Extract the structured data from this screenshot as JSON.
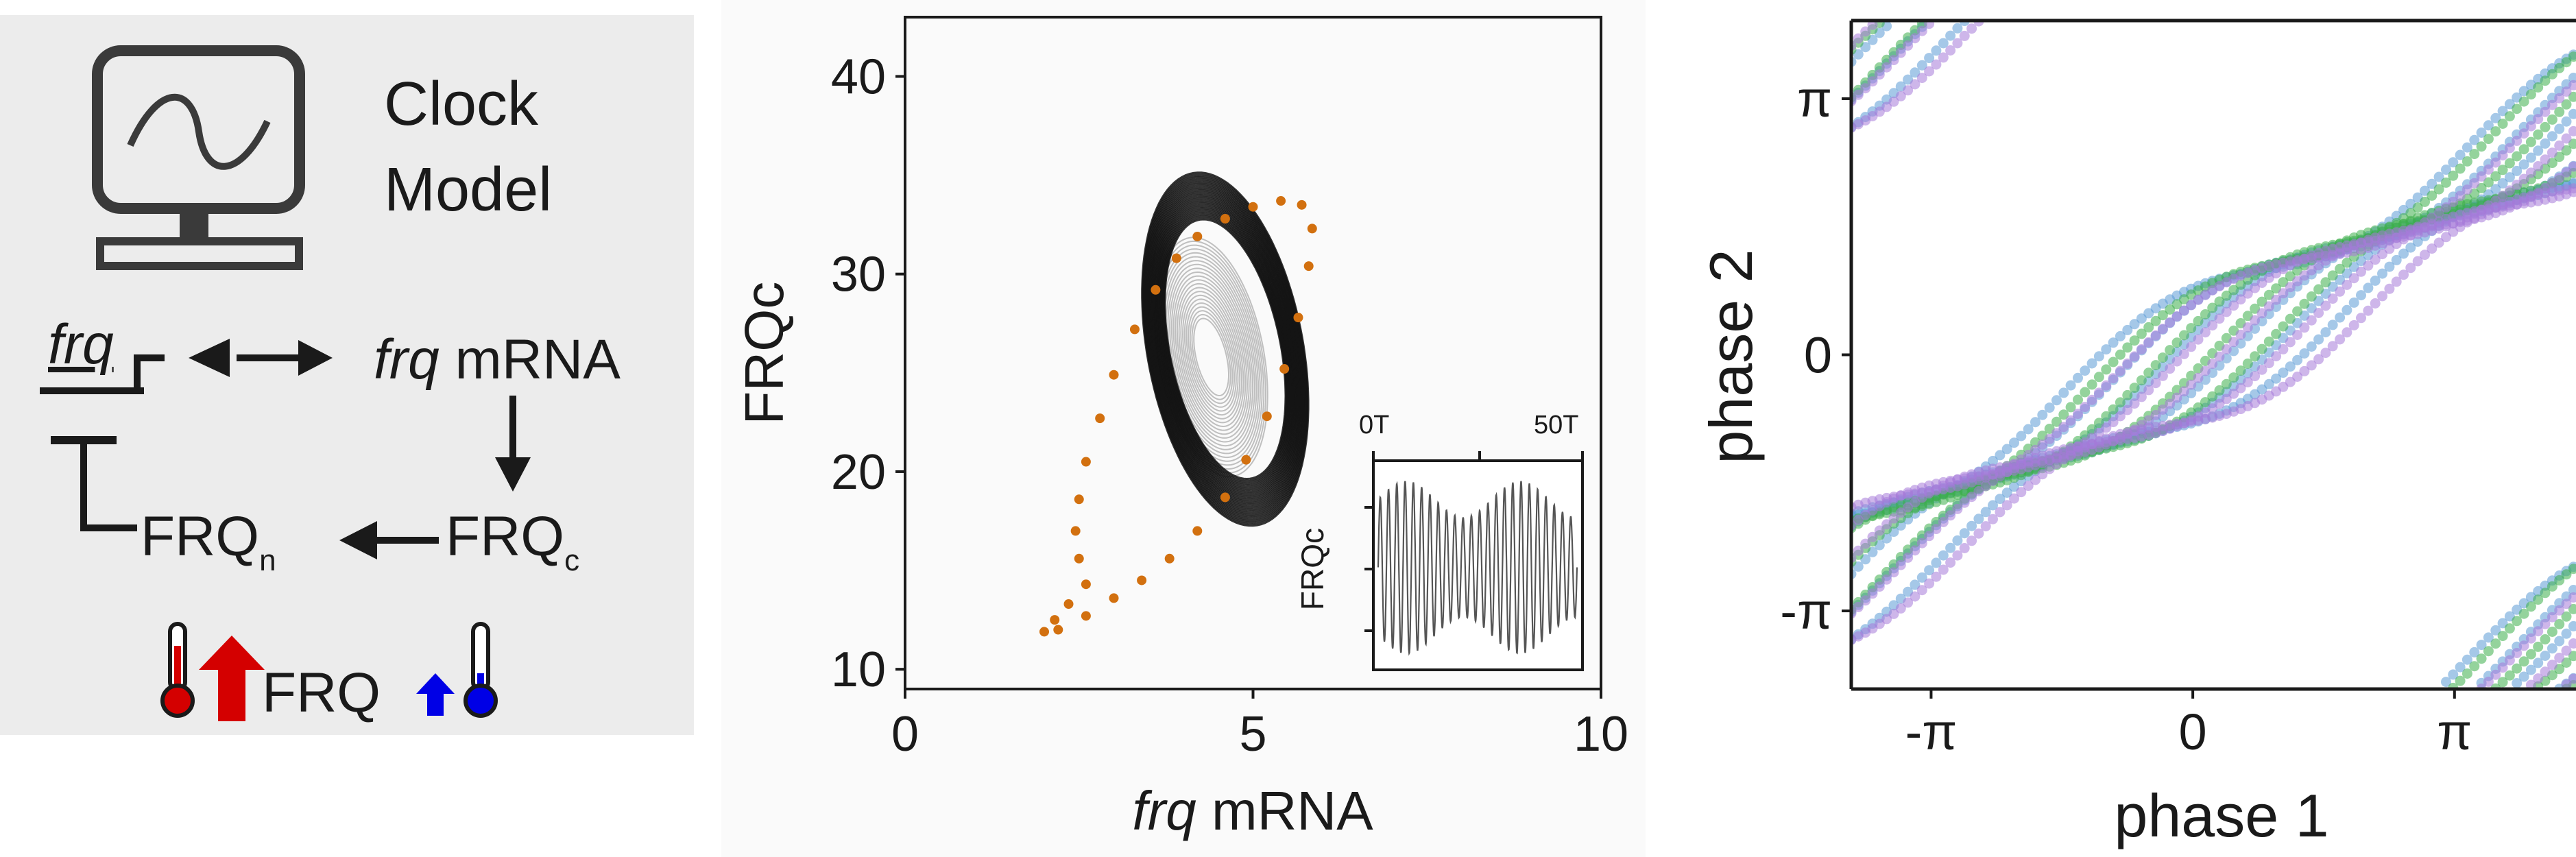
{
  "model": {
    "title_line1": "Clock",
    "title_line2": "Model",
    "gene": "frq",
    "mrna_italic": "frq",
    "mrna_suffix": " mRNA",
    "frqn_base": "FRQ",
    "frqn_sub": "n",
    "frqc_base": "FRQ",
    "frqc_sub": "c",
    "temp_label": "FRQ",
    "icons": [
      "monitor-sine-icon",
      "promoter-arrow-icon",
      "arrow-right-icon",
      "arrow-down-icon",
      "arrow-left-icon",
      "inhibition-bar-icon",
      "thermometer-hot-icon",
      "thermometer-cold-icon",
      "arrow-up-red-icon",
      "arrow-up-blue-icon"
    ],
    "colors": {
      "hot": "#d40000",
      "cold": "#0000e6",
      "ink": "#222222"
    }
  },
  "chart_data": [
    {
      "type": "line",
      "xlabel_italic": "frq",
      "xlabel_suffix": " mRNA",
      "ylabel": "FRQc",
      "xlim": [
        0,
        10
      ],
      "ylim": [
        9,
        43
      ],
      "xticks": [
        0,
        5,
        10
      ],
      "yticks": [
        10,
        20,
        30,
        40
      ],
      "colors": {
        "dark": "#111111",
        "light": "#b0b0b0",
        "points": "#d2700f"
      },
      "trajectory_dark": {
        "center": [
          4.6,
          26.2
        ],
        "radius_x": [
          2.6,
          3.7
        ],
        "radius_y": [
          11.5,
          15.5
        ],
        "tilt_deg": 58
      },
      "trajectory_light": {
        "center": [
          4.4,
          25.8
        ],
        "radius_x": [
          0.7,
          2.5
        ],
        "radius_y": [
          3.5,
          10.5
        ],
        "tilt_deg": 58
      },
      "highlight_points": [
        [
          2.0,
          11.9
        ],
        [
          2.2,
          12.0
        ],
        [
          2.6,
          12.7
        ],
        [
          3.0,
          13.6
        ],
        [
          3.4,
          14.5
        ],
        [
          3.8,
          15.6
        ],
        [
          4.2,
          17.0
        ],
        [
          4.6,
          18.7
        ],
        [
          4.9,
          20.6
        ],
        [
          5.2,
          22.8
        ],
        [
          5.45,
          25.2
        ],
        [
          5.65,
          27.8
        ],
        [
          5.8,
          30.4
        ],
        [
          5.85,
          32.3
        ],
        [
          5.7,
          33.5
        ],
        [
          5.4,
          33.7
        ],
        [
          5.0,
          33.4
        ],
        [
          4.6,
          32.8
        ],
        [
          4.2,
          31.9
        ],
        [
          3.9,
          30.8
        ],
        [
          3.6,
          29.2
        ],
        [
          3.3,
          27.2
        ],
        [
          3.0,
          24.9
        ],
        [
          2.8,
          22.7
        ],
        [
          2.6,
          20.5
        ],
        [
          2.5,
          18.6
        ],
        [
          2.45,
          17.0
        ],
        [
          2.5,
          15.6
        ],
        [
          2.6,
          14.3
        ],
        [
          2.35,
          13.3
        ],
        [
          2.15,
          12.5
        ]
      ],
      "inset": {
        "ylabel": "FRQc",
        "xtick_labels": [
          "0T",
          "50T"
        ],
        "color": "#555555"
      }
    },
    {
      "type": "scatter",
      "xlabel": "phase 1",
      "ylabel": "phase 2",
      "xlim": [
        -4.1,
        4.6
      ],
      "ylim": [
        -4.1,
        4.1
      ],
      "xtick_labels": [
        "-π",
        "0",
        "π"
      ],
      "xtick_values": [
        -3.14159,
        0,
        3.14159
      ],
      "ytick_labels": [
        "π",
        "0",
        "-π"
      ],
      "ytick_values": [
        3.14159,
        0,
        -3.14159
      ],
      "series": [
        {
          "color": "#5b9bd5",
          "offsets": [
            0.5,
            0.3,
            0.1,
            -0.2,
            -0.4,
            -0.6
          ],
          "slope": 0.62
        },
        {
          "color": "#3cae4b",
          "offsets": [
            0.4,
            0.15,
            -0.1,
            -0.35
          ],
          "slope": 0.64
        },
        {
          "color": "#a57ad9",
          "offsets": [
            0.3,
            0.05,
            -0.15,
            -0.45,
            -0.7
          ],
          "slope": 0.6
        }
      ]
    }
  ]
}
